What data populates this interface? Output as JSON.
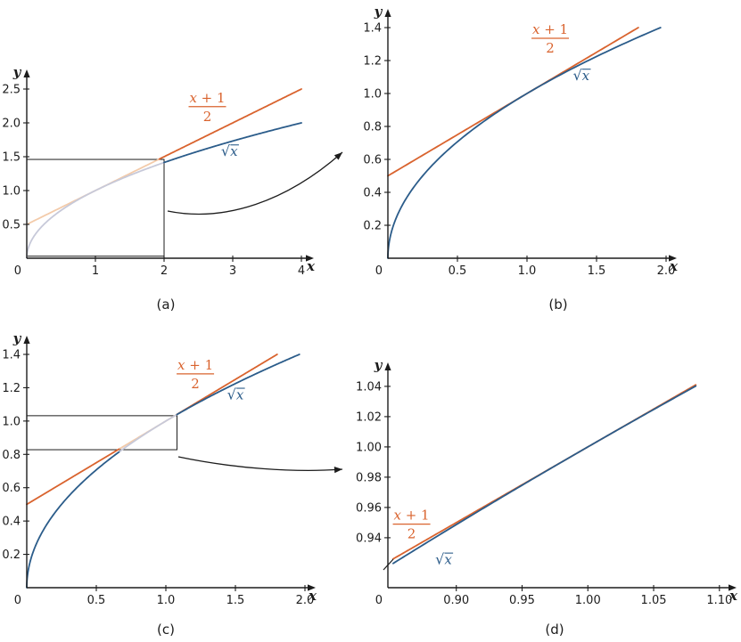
{
  "figure": {
    "background": "#ffffff",
    "colors": {
      "tangent": "#d9632e",
      "tangent_faded": "#f3cbaa",
      "sqrt": "#2b5c8a",
      "sqrt_faded": "#c7c9d9",
      "axis": "#1c1c1c",
      "annotation": "#1c1c1c"
    }
  },
  "chart_data": [
    {
      "id": "a",
      "type": "line",
      "caption": "(a)",
      "xlabel": "x",
      "ylabel": "y",
      "origin_label": "0",
      "xlim": [
        0,
        4
      ],
      "ylim": [
        0,
        2.5
      ],
      "x_tick_values": [
        1,
        2,
        3,
        4
      ],
      "x_tick_labels": [
        "1",
        "2",
        "3",
        "4"
      ],
      "y_tick_values": [
        0.5,
        1.0,
        1.5,
        2.0,
        2.5
      ],
      "y_tick_labels": [
        "0.5",
        "1.0",
        "1.5",
        "2.0",
        "2.5"
      ],
      "series": [
        {
          "name": "tangent-line",
          "expr": "(x+1)/2",
          "color_key": "tangent",
          "domain": [
            0,
            4
          ],
          "fade": [
            0,
            1.93
          ],
          "label": {
            "type": "fraction",
            "numerator": "x + 1",
            "denominator": "2",
            "pos": [
              2.63,
              2.24
            ]
          }
        },
        {
          "name": "sqrt-curve",
          "expr": "sqrt(x)",
          "color_key": "sqrt",
          "domain": [
            0,
            4
          ],
          "fade": [
            0,
            2.0
          ],
          "label": {
            "type": "sqrt",
            "radical": "√",
            "arg": "x",
            "pos": [
              2.83,
              1.51
            ]
          }
        }
      ],
      "zoom_rect": {
        "x": [
          0,
          2
        ],
        "y": [
          0.03,
          1.46
        ]
      },
      "inset_arrow_to": "b"
    },
    {
      "id": "b",
      "type": "line",
      "caption": "(b)",
      "xlabel": "x",
      "ylabel": "y",
      "origin_label": "0",
      "xlim": [
        0,
        2
      ],
      "ylim": [
        0,
        1.4
      ],
      "x_tick_values": [
        0.5,
        1.0,
        1.5,
        2.0
      ],
      "x_tick_labels": [
        "0.5",
        "1.0",
        "1.5",
        "2.0"
      ],
      "y_tick_values": [
        0.2,
        0.4,
        0.6,
        0.8,
        1.0,
        1.2,
        1.4
      ],
      "y_tick_labels": [
        "0.2",
        "0.4",
        "0.6",
        "0.8",
        "1.0",
        "1.2",
        "1.4"
      ],
      "series": [
        {
          "name": "tangent-line",
          "expr": "(x+1)/2",
          "color_key": "tangent",
          "domain": [
            0,
            1.8
          ],
          "label": {
            "type": "fraction",
            "numerator": "x + 1",
            "denominator": "2",
            "pos": [
              1.167,
              1.335
            ]
          }
        },
        {
          "name": "sqrt-curve",
          "expr": "sqrt(x)",
          "color_key": "sqrt",
          "domain": [
            0,
            1.96
          ],
          "label": {
            "type": "sqrt",
            "radical": "√",
            "arg": "x",
            "pos": [
              1.33,
              1.08
            ]
          }
        }
      ]
    },
    {
      "id": "c",
      "type": "line",
      "caption": "(c)",
      "xlabel": "x",
      "ylabel": "y",
      "origin_label": "0",
      "xlim": [
        0,
        2
      ],
      "ylim": [
        0,
        1.4
      ],
      "x_tick_values": [
        0.5,
        1.0,
        1.5,
        2.0
      ],
      "x_tick_labels": [
        "0.5",
        "1.0",
        "1.5",
        "2.0"
      ],
      "y_tick_values": [
        0.2,
        0.4,
        0.6,
        0.8,
        1.0,
        1.2,
        1.4
      ],
      "y_tick_labels": [
        "0.2",
        "0.4",
        "0.6",
        "0.8",
        "1.0",
        "1.2",
        "1.4"
      ],
      "series": [
        {
          "name": "tangent-line",
          "expr": "(x+1)/2",
          "color_key": "tangent",
          "domain": [
            0,
            1.8
          ],
          "fade": [
            0.67,
            1.08
          ],
          "label": {
            "type": "fraction",
            "numerator": "x + 1",
            "denominator": "2",
            "pos": [
              1.212,
              1.283
            ]
          }
        },
        {
          "name": "sqrt-curve",
          "expr": "sqrt(x)",
          "color_key": "sqrt",
          "domain": [
            0,
            1.96
          ],
          "fade": [
            0.67,
            1.08
          ],
          "label": {
            "type": "sqrt",
            "radical": "√",
            "arg": "x",
            "pos": [
              1.44,
              1.13
            ]
          }
        }
      ],
      "zoom_rect": {
        "x": [
          0,
          1.08
        ],
        "y": [
          0.828,
          1.032
        ]
      },
      "inset_arrow_to": "d"
    },
    {
      "id": "d",
      "type": "line",
      "caption": "(d)",
      "xlabel": "x",
      "ylabel": "y",
      "origin_label": "0",
      "axis_break": true,
      "xlim": [
        0.848,
        1.108
      ],
      "ylim": [
        0.907,
        1.046
      ],
      "x_tick_values": [
        0.9,
        0.95,
        1.0,
        1.05,
        1.1
      ],
      "x_tick_labels": [
        "0.90",
        "0.95",
        "1.00",
        "1.05",
        "1.10"
      ],
      "y_tick_values": [
        0.94,
        0.96,
        0.98,
        1.0,
        1.02,
        1.04
      ],
      "y_tick_labels": [
        "0.94",
        "0.96",
        "0.98",
        "1.00",
        "1.02",
        "1.04"
      ],
      "series": [
        {
          "name": "tangent-line",
          "expr": "(x+1)/2",
          "color_key": "tangent",
          "domain": [
            0.852,
            1.082
          ],
          "label": {
            "type": "fraction",
            "numerator": "x + 1",
            "denominator": "2",
            "pos": [
              0.866,
              0.949
            ]
          }
        },
        {
          "name": "sqrt-curve",
          "expr": "sqrt(x)",
          "color_key": "sqrt",
          "domain": [
            0.852,
            1.082
          ],
          "label": {
            "type": "sqrt",
            "radical": "√",
            "arg": "x",
            "pos": [
              0.884,
              0.9225
            ]
          }
        }
      ]
    }
  ]
}
